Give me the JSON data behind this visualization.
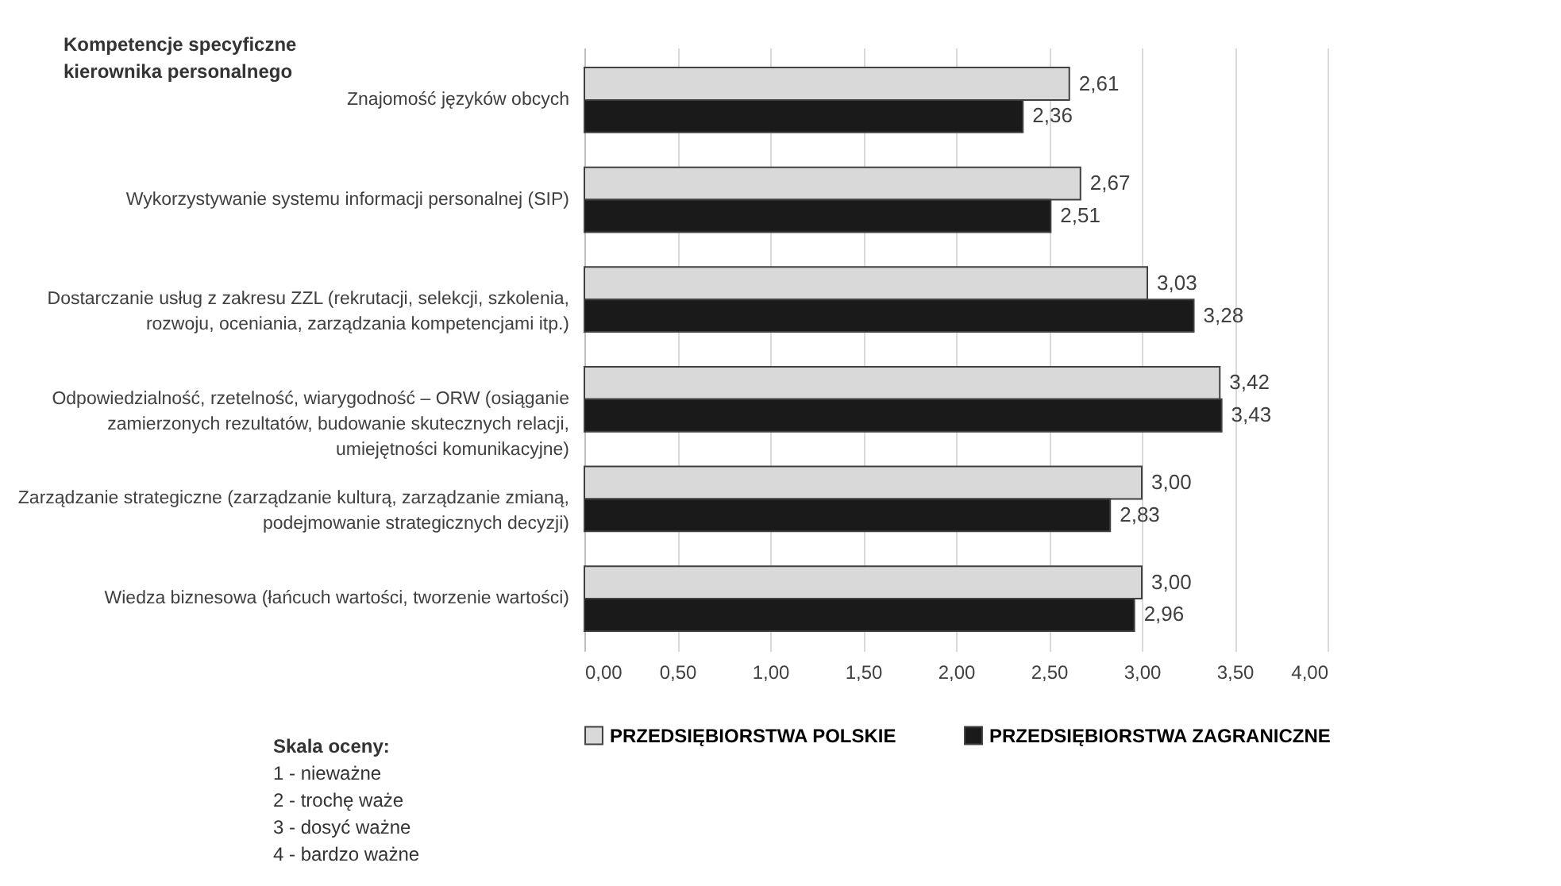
{
  "chart_data": {
    "type": "bar",
    "orientation": "horizontal",
    "categories": [
      "Znajomość języków obcych",
      "Wykorzystywanie systemu informacji personalnej (SIP)",
      "Dostarczanie usług z zakresu ZZL (rekrutacji, selekcji, szkolenia, rozwoju, oceniania, zarządzania kompetencjami itp.)",
      "Odpowiedzialność, rzetelność, wiarygodność – ORW  (osiąganie zamierzonych rezultatów, budowanie skutecznych relacji, umiejętności komunikacyjne)",
      "Zarządzanie strategiczne (zarządzanie kulturą, zarządzanie zmianą, podejmowanie strategicznych decyzji)",
      "Wiedza biznesowa (łańcuch wartości, tworzenie wartości)"
    ],
    "series": [
      {
        "name": "PRZEDSIĘBIORSTWA POLSKIE",
        "color": "#d9d9d9",
        "values": [
          2.61,
          2.67,
          3.03,
          3.42,
          3.0,
          3.0
        ],
        "value_labels": [
          "2,61",
          "2,67",
          "3,03",
          "3,42",
          "3,00",
          "3,00"
        ]
      },
      {
        "name": "PRZEDSIĘBIORSTWA ZAGRANICZNE",
        "color": "#1a1a1a",
        "values": [
          2.36,
          2.51,
          3.28,
          3.43,
          2.83,
          2.96
        ],
        "value_labels": [
          "2,36",
          "2,51",
          "3,28",
          "3,43",
          "2,83",
          "2,96"
        ]
      }
    ],
    "xlim": [
      0,
      4
    ],
    "xticks": [
      {
        "value": 0,
        "label": "0,00"
      },
      {
        "value": 0.5,
        "label": "0,50"
      },
      {
        "value": 1,
        "label": "1,00"
      },
      {
        "value": 1.5,
        "label": "1,50"
      },
      {
        "value": 2,
        "label": "2,00"
      },
      {
        "value": 2.5,
        "label": "2,50"
      },
      {
        "value": 3,
        "label": "3,00"
      },
      {
        "value": 3.5,
        "label": "3,50"
      },
      {
        "value": 4,
        "label": "4,00"
      }
    ],
    "grid": "x",
    "legend": "bottom",
    "annotations": [
      "Kompetencje specyficzne kierownika personalnego",
      "Skala oceny:",
      "1 - nieważne",
      "2 - trochę waże",
      "3 - dosyć ważne",
      "4 - bardzo ważne"
    ]
  }
}
